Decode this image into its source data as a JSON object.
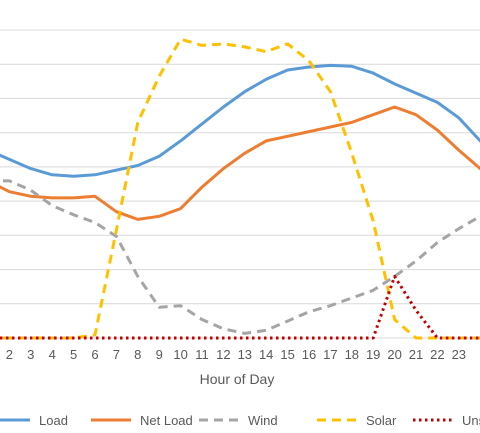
{
  "chart_data": {
    "type": "line",
    "xlabel": "Hour of Day",
    "ylabel": "",
    "title": "",
    "x": [
      1,
      2,
      3,
      4,
      5,
      6,
      7,
      8,
      9,
      10,
      11,
      12,
      13,
      14,
      15,
      16,
      17,
      18,
      19,
      20,
      21,
      22,
      23,
      24
    ],
    "ylim": [
      0,
      10
    ],
    "grid": true,
    "legend_position": "bottom",
    "series": [
      {
        "name": "Load",
        "color": "#5B9BD5",
        "dash": "solid",
        "values": [
          6.1,
          5.8,
          5.5,
          5.3,
          5.25,
          5.3,
          5.45,
          5.6,
          5.9,
          6.4,
          6.95,
          7.5,
          8.0,
          8.4,
          8.7,
          8.8,
          8.85,
          8.82,
          8.6,
          8.25,
          7.95,
          7.65,
          7.15,
          6.4
        ]
      },
      {
        "name": "Net Load",
        "color": "#ED7D31",
        "dash": "solid",
        "values": [
          5.1,
          4.75,
          4.6,
          4.55,
          4.55,
          4.6,
          4.1,
          3.85,
          3.95,
          4.2,
          4.9,
          5.5,
          6.0,
          6.4,
          6.55,
          6.7,
          6.85,
          7.0,
          7.25,
          7.5,
          7.25,
          6.75,
          6.1,
          5.5
        ]
      },
      {
        "name": "Wind",
        "color": "#A5A5A5",
        "dash": "dash",
        "values": [
          5.1,
          5.1,
          4.8,
          4.3,
          4.0,
          3.75,
          3.3,
          2.0,
          1.0,
          1.05,
          0.6,
          0.3,
          0.15,
          0.25,
          0.55,
          0.85,
          1.05,
          1.3,
          1.55,
          2.0,
          2.5,
          3.1,
          3.55,
          3.95
        ]
      },
      {
        "name": "Solar",
        "color": "#FFC000",
        "dash": "dash",
        "values": [
          0,
          0,
          0,
          0,
          0,
          0.1,
          3.5,
          7.0,
          8.5,
          9.7,
          9.5,
          9.55,
          9.45,
          9.3,
          9.55,
          9.0,
          8.0,
          6.0,
          3.8,
          0.6,
          0,
          0,
          0,
          0
        ]
      },
      {
        "name": "Unserved",
        "color": "#C00000",
        "dash": "dot",
        "values": [
          0,
          0,
          0,
          0,
          0,
          0,
          0,
          0,
          0,
          0,
          0,
          0,
          0,
          0,
          0,
          0,
          0,
          0,
          0,
          2.0,
          0.9,
          0,
          0,
          0
        ]
      }
    ],
    "x_tick_labels": [
      "2",
      "3",
      "4",
      "5",
      "6",
      "7",
      "8",
      "9",
      "10",
      "11",
      "12",
      "13",
      "14",
      "15",
      "16",
      "17",
      "18",
      "19",
      "20",
      "21",
      "22",
      "23"
    ],
    "legend_entries": [
      "Load",
      "Net Load",
      "Wind",
      "Solar",
      "Unserve"
    ]
  }
}
